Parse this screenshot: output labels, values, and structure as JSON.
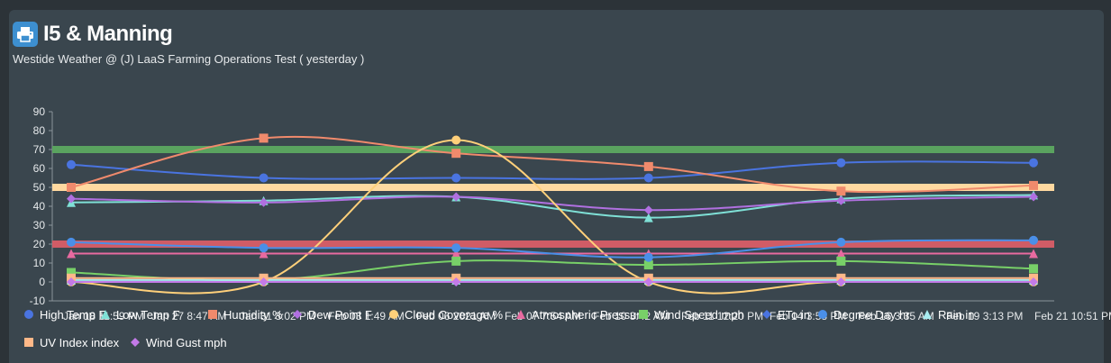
{
  "widget": {
    "title": "I5 & Manning",
    "subtitle": "Westide Weather @ (J) LaaS Farming Operations Test ( yesterday )"
  },
  "chart_data": {
    "type": "line",
    "ylim": [
      -10,
      90
    ],
    "yticks": [
      -10,
      0,
      10,
      20,
      30,
      40,
      50,
      60,
      70,
      80,
      90
    ],
    "x_tick_labels": [
      "Jan 18 11:59 PM",
      "Jan 27 8:47 AM",
      "Jan 31 3:02 PM",
      "Feb 03 1:49 AM",
      "Feb 06 2021 AM",
      "Feb 07 7:54 AM",
      "Feb 10 3:42 AM",
      "Feb 11 12:20 PM",
      "Feb 14 3:58 PM",
      "Feb 16 3:35 AM",
      "Feb 19 3:13 PM",
      "Feb 21 10:51 PM"
    ],
    "x_points": [
      "Jan 18 11:59 PM",
      "Feb 03 1:49 AM",
      "Feb 07 7:54 AM",
      "Feb 10 3:42 AM",
      "Feb 14 3:58 PM",
      "Feb 21 10:51 PM"
    ],
    "bands": [
      {
        "value": 70,
        "color": "#5aa35f"
      },
      {
        "value": 50,
        "color": "#ffd9a0"
      },
      {
        "value": 20,
        "color": "#d05c66"
      }
    ],
    "series": [
      {
        "name": "High Temp F",
        "color": "#4a74e0",
        "marker": "circle",
        "values": [
          62,
          55,
          55,
          55,
          63,
          63
        ]
      },
      {
        "name": "Low Temp F",
        "color": "#7fe0d6",
        "marker": "triangle",
        "values": [
          42,
          43,
          45,
          34,
          44,
          46
        ]
      },
      {
        "name": "Humidity %",
        "color": "#f08a6c",
        "marker": "square",
        "values": [
          50,
          76,
          68,
          61,
          48,
          51
        ]
      },
      {
        "name": "Dew Point F",
        "color": "#b070e0",
        "marker": "diamond",
        "values": [
          44,
          42,
          45,
          38,
          43,
          45
        ]
      },
      {
        "name": "Cloud Coverage %",
        "color": "#ffd07a",
        "marker": "circle",
        "values": [
          0,
          0,
          75,
          0,
          0,
          0
        ]
      },
      {
        "name": "Atmospheric Pressure",
        "color": "#e86aa0",
        "marker": "triangle",
        "values": [
          15,
          15,
          15,
          15,
          15,
          15
        ]
      },
      {
        "name": "Wind Speed mph",
        "color": "#78d068",
        "marker": "square",
        "values": [
          5,
          1,
          11,
          9,
          11,
          7
        ]
      },
      {
        "name": "ETo in",
        "color": "#4a74e0",
        "marker": "diamond",
        "values": [
          0,
          0,
          0,
          0,
          0,
          0
        ]
      },
      {
        "name": "Degree Day hr",
        "color": "#4a8fe8",
        "marker": "circle",
        "values": [
          21,
          18,
          18,
          13,
          21,
          22
        ]
      },
      {
        "name": "Rain in",
        "color": "#a8ecf0",
        "marker": "triangle",
        "values": [
          1,
          1,
          1,
          1,
          1,
          1
        ]
      },
      {
        "name": "UV Index index",
        "color": "#ffb888",
        "marker": "square",
        "values": [
          2,
          2,
          2,
          2,
          2,
          2
        ]
      },
      {
        "name": "Wind Gust mph",
        "color": "#c37ae8",
        "marker": "diamond",
        "values": [
          0,
          0,
          0,
          0,
          0,
          0
        ]
      }
    ]
  }
}
